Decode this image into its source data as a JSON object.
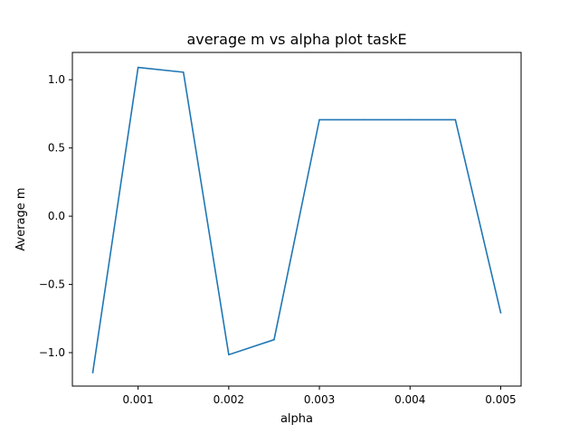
{
  "chart_data": {
    "type": "line",
    "title": "average m vs alpha plot taskE",
    "xlabel": "alpha",
    "ylabel": "Average m",
    "xlim": [
      0.000275,
      0.005225
    ],
    "ylim": [
      -1.245,
      1.2
    ],
    "xticks": [
      0.001,
      0.002,
      0.003,
      0.004,
      0.005
    ],
    "xtick_labels": [
      "0.001",
      "0.002",
      "0.003",
      "0.004",
      "0.005"
    ],
    "yticks": [
      -1.0,
      -0.5,
      0.0,
      0.5,
      1.0
    ],
    "ytick_labels": [
      "−1.0",
      "−0.5",
      "0.0",
      "0.5",
      "1.0"
    ],
    "grid": false,
    "line_color": "#1f77b4",
    "series": [
      {
        "x": [
          0.0005,
          0.001,
          0.0015,
          0.002,
          0.0025,
          0.003,
          0.0035,
          0.004,
          0.0045,
          0.005
        ],
        "values": [
          -1.145,
          1.09,
          1.055,
          -1.015,
          -0.905,
          0.707,
          0.707,
          0.707,
          0.707,
          -0.707
        ]
      }
    ]
  }
}
